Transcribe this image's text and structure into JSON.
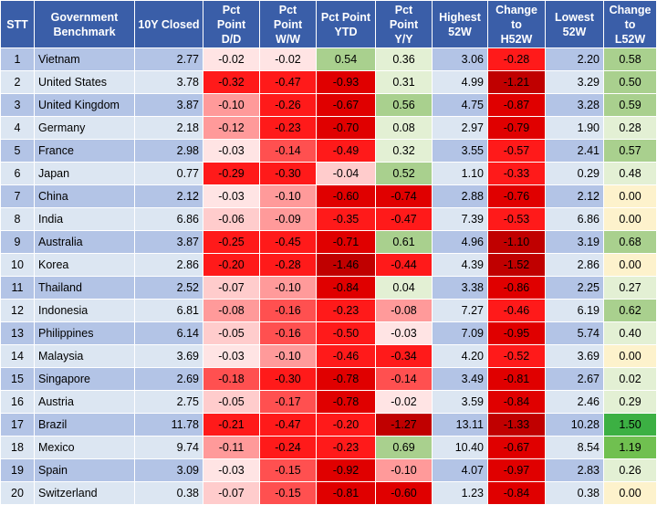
{
  "headers": [
    "STT",
    "Government\nBenchmark",
    "10Y Closed",
    "Pct\nPoint\nD/D",
    "Pct\nPoint\nW/W",
    "Pct Point\nYTD",
    "Pct\nPoint\nY/Y",
    "Highest\n52W",
    "Change\nto\nH52W",
    "Lowest\n52W",
    "Change\nto\nL52W"
  ],
  "rows": [
    [
      "1",
      "Vietnam",
      "2.77",
      "-0.02",
      "-0.02",
      "0.54",
      "0.36",
      "3.06",
      "-0.28",
      "2.20",
      "0.58"
    ],
    [
      "2",
      "United States",
      "3.78",
      "-0.32",
      "-0.47",
      "-0.93",
      "0.31",
      "4.99",
      "-1.21",
      "3.29",
      "0.50"
    ],
    [
      "3",
      "United Kingdom",
      "3.87",
      "-0.10",
      "-0.26",
      "-0.67",
      "0.56",
      "4.75",
      "-0.87",
      "3.28",
      "0.59"
    ],
    [
      "4",
      "Germany",
      "2.18",
      "-0.12",
      "-0.23",
      "-0.70",
      "0.08",
      "2.97",
      "-0.79",
      "1.90",
      "0.28"
    ],
    [
      "5",
      "France",
      "2.98",
      "-0.03",
      "-0.14",
      "-0.49",
      "0.32",
      "3.55",
      "-0.57",
      "2.41",
      "0.57"
    ],
    [
      "6",
      "Japan",
      "0.77",
      "-0.29",
      "-0.30",
      "-0.04",
      "0.52",
      "1.10",
      "-0.33",
      "0.29",
      "0.48"
    ],
    [
      "7",
      "China",
      "2.12",
      "-0.03",
      "-0.10",
      "-0.60",
      "-0.74",
      "2.88",
      "-0.76",
      "2.12",
      "0.00"
    ],
    [
      "8",
      "India",
      "6.86",
      "-0.06",
      "-0.09",
      "-0.35",
      "-0.47",
      "7.39",
      "-0.53",
      "6.86",
      "0.00"
    ],
    [
      "9",
      "Australia",
      "3.87",
      "-0.25",
      "-0.45",
      "-0.71",
      "0.61",
      "4.96",
      "-1.10",
      "3.19",
      "0.68"
    ],
    [
      "10",
      "Korea",
      "2.86",
      "-0.20",
      "-0.28",
      "-1.46",
      "-0.44",
      "4.39",
      "-1.52",
      "2.86",
      "0.00"
    ],
    [
      "11",
      "Thailand",
      "2.52",
      "-0.07",
      "-0.10",
      "-0.84",
      "0.04",
      "3.38",
      "-0.86",
      "2.25",
      "0.27"
    ],
    [
      "12",
      "Indonesia",
      "6.81",
      "-0.08",
      "-0.16",
      "-0.23",
      "-0.08",
      "7.27",
      "-0.46",
      "6.19",
      "0.62"
    ],
    [
      "13",
      "Philippines",
      "6.14",
      "-0.05",
      "-0.16",
      "-0.50",
      "-0.03",
      "7.09",
      "-0.95",
      "5.74",
      "0.40"
    ],
    [
      "14",
      "Malaysia",
      "3.69",
      "-0.03",
      "-0.10",
      "-0.46",
      "-0.34",
      "4.20",
      "-0.52",
      "3.69",
      "0.00"
    ],
    [
      "15",
      "Singapore",
      "2.69",
      "-0.18",
      "-0.30",
      "-0.78",
      "-0.14",
      "3.49",
      "-0.81",
      "2.67",
      "0.02"
    ],
    [
      "16",
      "Austria",
      "2.75",
      "-0.05",
      "-0.17",
      "-0.78",
      "-0.02",
      "3.59",
      "-0.84",
      "2.46",
      "0.29"
    ],
    [
      "17",
      "Brazil",
      "11.78",
      "-0.21",
      "-0.47",
      "-0.20",
      "-1.27",
      "13.11",
      "-1.33",
      "10.28",
      "1.50"
    ],
    [
      "18",
      "Mexico",
      "9.74",
      "-0.11",
      "-0.24",
      "-0.23",
      "0.69",
      "10.40",
      "-0.67",
      "8.54",
      "1.19"
    ],
    [
      "19",
      "Spain",
      "3.09",
      "-0.03",
      "-0.15",
      "-0.92",
      "-0.10",
      "4.07",
      "-0.97",
      "2.83",
      "0.26"
    ],
    [
      "20",
      "Switzerland",
      "0.38",
      "-0.07",
      "-0.15",
      "-0.81",
      "-0.60",
      "1.23",
      "-0.84",
      "0.38",
      "0.00"
    ]
  ],
  "colors": {
    "header_bg": "#3a5ea8",
    "header_text": "#ffffff",
    "row_odd": "#b3c4e6",
    "row_even": "#dce6f2",
    "neg_scale": [
      "#ffe4e4",
      "#ffcccc",
      "#ff9a9a",
      "#ff5050",
      "#ff1a1a",
      "#e00000",
      "#c00000"
    ],
    "pos_scale": [
      "#fdf2cc",
      "#e3f0d4",
      "#c8e2b0",
      "#a9d08e",
      "#70c050",
      "#3cb043"
    ]
  }
}
